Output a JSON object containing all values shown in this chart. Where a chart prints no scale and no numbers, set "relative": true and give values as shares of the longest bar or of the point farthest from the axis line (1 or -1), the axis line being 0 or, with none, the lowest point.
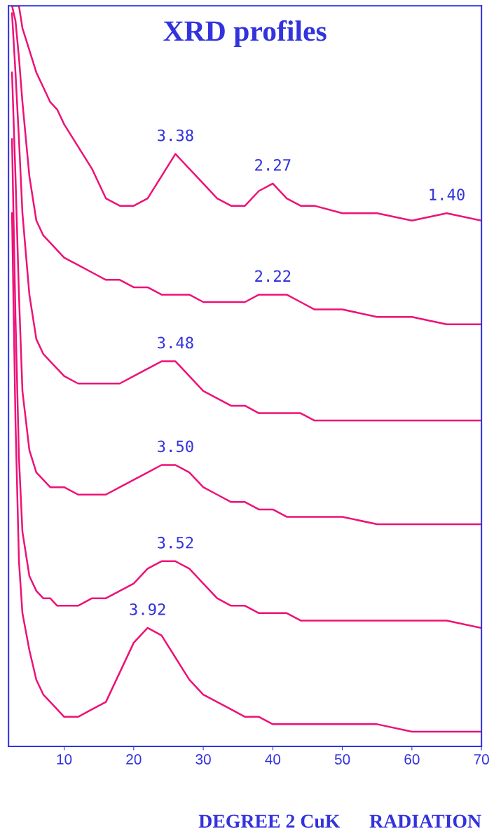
{
  "chart_data": {
    "type": "line",
    "title": "XRD profiles",
    "xlabel": "DEGREE 2 CuK      RADIATION",
    "relative": true,
    "xlim": [
      2,
      70
    ],
    "xticks": [
      10,
      20,
      30,
      40,
      50,
      60,
      70
    ],
    "grid": false,
    "legend": false,
    "marker": "none",
    "line_style": "solid",
    "x": [
      2.5,
      3,
      3.5,
      4,
      5,
      6,
      7,
      8,
      9,
      10,
      12,
      14,
      16,
      18,
      20,
      22,
      24,
      26,
      28,
      30,
      32,
      34,
      36,
      38,
      40,
      42,
      44,
      46,
      50,
      55,
      60,
      65,
      70
    ],
    "series": [
      {
        "color": "#ee1177",
        "values": [
          1.0,
          1.0,
          1.0,
          0.97,
          0.94,
          0.91,
          0.89,
          0.87,
          0.86,
          0.84,
          0.81,
          0.78,
          0.74,
          0.73,
          0.73,
          0.74,
          0.77,
          0.8,
          0.78,
          0.76,
          0.74,
          0.73,
          0.73,
          0.75,
          0.76,
          0.74,
          0.73,
          0.73,
          0.72,
          0.72,
          0.71,
          0.72,
          0.71
        ]
      },
      {
        "color": "#ee1177",
        "values": [
          1.0,
          0.98,
          0.93,
          0.87,
          0.77,
          0.71,
          0.69,
          0.68,
          0.67,
          0.66,
          0.65,
          0.64,
          0.63,
          0.63,
          0.62,
          0.62,
          0.61,
          0.61,
          0.61,
          0.6,
          0.6,
          0.6,
          0.6,
          0.61,
          0.61,
          0.61,
          0.6,
          0.59,
          0.59,
          0.58,
          0.58,
          0.57,
          0.57
        ]
      },
      {
        "color": "#ee1177",
        "values": [
          0.99,
          0.91,
          0.82,
          0.72,
          0.61,
          0.55,
          0.53,
          0.52,
          0.51,
          0.5,
          0.49,
          0.49,
          0.49,
          0.49,
          0.5,
          0.51,
          0.52,
          0.52,
          0.5,
          0.48,
          0.47,
          0.46,
          0.46,
          0.45,
          0.45,
          0.45,
          0.45,
          0.44,
          0.44,
          0.44,
          0.44,
          0.44,
          0.44
        ]
      },
      {
        "color": "#ee1177",
        "values": [
          0.91,
          0.77,
          0.61,
          0.48,
          0.4,
          0.37,
          0.36,
          0.35,
          0.35,
          0.35,
          0.34,
          0.34,
          0.34,
          0.35,
          0.36,
          0.37,
          0.38,
          0.38,
          0.37,
          0.35,
          0.34,
          0.33,
          0.33,
          0.32,
          0.32,
          0.31,
          0.31,
          0.31,
          0.31,
          0.3,
          0.3,
          0.3,
          0.3
        ]
      },
      {
        "color": "#ee1177",
        "values": [
          0.82,
          0.58,
          0.39,
          0.29,
          0.23,
          0.21,
          0.2,
          0.2,
          0.19,
          0.19,
          0.19,
          0.2,
          0.2,
          0.21,
          0.22,
          0.24,
          0.25,
          0.25,
          0.24,
          0.22,
          0.2,
          0.19,
          0.19,
          0.18,
          0.18,
          0.18,
          0.17,
          0.17,
          0.17,
          0.17,
          0.17,
          0.17,
          0.16
        ]
      },
      {
        "color": "#ee1177",
        "values": [
          0.72,
          0.44,
          0.25,
          0.18,
          0.13,
          0.09,
          0.07,
          0.06,
          0.05,
          0.04,
          0.04,
          0.05,
          0.06,
          0.1,
          0.14,
          0.16,
          0.15,
          0.12,
          0.09,
          0.07,
          0.06,
          0.05,
          0.04,
          0.04,
          0.03,
          0.03,
          0.03,
          0.03,
          0.03,
          0.03,
          0.02,
          0.02,
          0.02
        ]
      }
    ],
    "annotations": [
      {
        "text": "3.38",
        "x": 26,
        "y": 0.8
      },
      {
        "text": "2.27",
        "x": 40,
        "y": 0.76
      },
      {
        "text": "1.40",
        "x": 65,
        "y": 0.72
      },
      {
        "text": "2.22",
        "x": 40,
        "y": 0.61
      },
      {
        "text": "3.48",
        "x": 26,
        "y": 0.52
      },
      {
        "text": "3.50",
        "x": 26,
        "y": 0.38
      },
      {
        "text": "3.52",
        "x": 26,
        "y": 0.25
      },
      {
        "text": "3.92",
        "x": 22,
        "y": 0.16
      }
    ]
  }
}
